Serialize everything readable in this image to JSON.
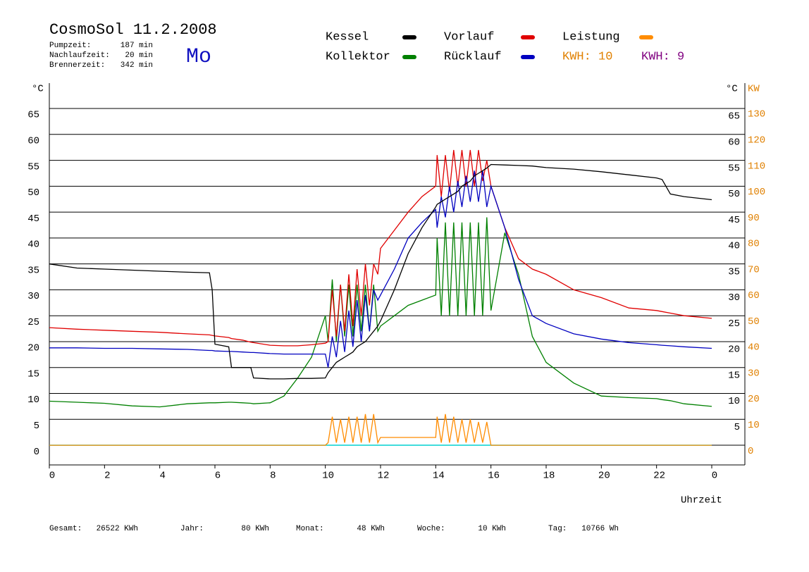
{
  "chart_data": {
    "type": "line",
    "title": "CosmoSol 11.2.2008",
    "weekday": "Mo",
    "stats": [
      {
        "label": "Pumpzeit:",
        "value": "187 min"
      },
      {
        "label": "Nachlaufzeit:",
        "value": "20 min"
      },
      {
        "label": "Brennerzeit:",
        "value": "342 min"
      }
    ],
    "kwh_labels": [
      {
        "text": "KWH: 10",
        "color": "#e08000"
      },
      {
        "text": "KWH: 9",
        "color": "#800080"
      }
    ],
    "ylabel": "°C",
    "y2label_left": "°C",
    "y2label": "KW",
    "xlabel": "Uhrzeit",
    "footer": [
      {
        "label": "Gesamt:",
        "value": "26522 KWh"
      },
      {
        "label": "Jahr:",
        "value": "80 KWh"
      },
      {
        "label": "Monat:",
        "value": "48 KWh"
      },
      {
        "label": "Woche:",
        "value": "10 KWh"
      },
      {
        "label": "Tag:",
        "value": "10766 Wh"
      }
    ],
    "xlim": [
      0,
      25.2
    ],
    "xticks": [
      0,
      2,
      4,
      6,
      8,
      10,
      12,
      14,
      16,
      18,
      20,
      22,
      {
        "value": 24,
        "label": "0"
      }
    ],
    "ylim": [
      -3.8,
      69.9
    ],
    "yticks": [
      0,
      5,
      10,
      15,
      20,
      25,
      30,
      35,
      40,
      45,
      50,
      55,
      60,
      65
    ],
    "yticks_right": [
      5,
      10,
      15,
      20,
      25,
      30,
      35,
      40,
      45,
      50,
      55,
      60,
      65
    ],
    "y2lim": [
      -7.6,
      139.8
    ],
    "y2ticks": [
      0,
      10,
      20,
      30,
      40,
      50,
      60,
      70,
      80,
      90,
      100,
      110,
      120,
      130
    ],
    "grid": true,
    "x": [
      0,
      1,
      2,
      3,
      4,
      5,
      5.8,
      5.9,
      6,
      6.5,
      6.6,
      7,
      7.3,
      7.4,
      8,
      8.5,
      9,
      9.5,
      10,
      10.1,
      10.25,
      10.4,
      10.55,
      10.7,
      10.85,
      11,
      11.15,
      11.3,
      11.45,
      11.6,
      11.75,
      11.9,
      12,
      12.5,
      13,
      13.5,
      14,
      14.05,
      14.2,
      14.35,
      14.5,
      14.65,
      14.8,
      14.95,
      15.1,
      15.25,
      15.4,
      15.55,
      15.7,
      15.85,
      16,
      16.5,
      17,
      17.5,
      18,
      19,
      20,
      21,
      22,
      22.2,
      22.5,
      23,
      24
    ],
    "series": [
      {
        "name": "Kessel",
        "color": "#000000",
        "values": [
          35,
          34.2,
          34,
          33.8,
          33.6,
          33.4,
          33.3,
          30,
          19.5,
          19,
          15,
          15,
          15,
          13,
          12.8,
          12.8,
          12.9,
          12.9,
          13,
          14,
          15,
          16,
          16.5,
          17,
          17.5,
          18,
          19,
          19.5,
          20,
          21,
          22,
          23,
          24,
          30,
          37,
          42,
          46,
          46.5,
          47,
          47.5,
          48,
          48.5,
          49,
          50,
          50.5,
          51,
          52,
          52.5,
          53,
          53.5,
          54.2,
          54.1,
          54,
          53.9,
          53.6,
          53.3,
          52.8,
          52.2,
          51.6,
          51.3,
          48.5,
          48,
          47.4
        ]
      },
      {
        "name": "Kollektor",
        "color": "#008000",
        "values": [
          8.5,
          8.3,
          8.1,
          7.6,
          7.4,
          8,
          8.2,
          8.2,
          8.2,
          8.3,
          8.3,
          8.2,
          8.1,
          8,
          8.2,
          9.5,
          13,
          17,
          25,
          20,
          32,
          20,
          31,
          21,
          31,
          21,
          31,
          22,
          31,
          22,
          31,
          22,
          23,
          25,
          27,
          28,
          29,
          40,
          25,
          43,
          25,
          43,
          25,
          43,
          25,
          43,
          25,
          43,
          25,
          44,
          26,
          41,
          33,
          21,
          16,
          12,
          9.5,
          9.2,
          9,
          8.8,
          8.6,
          8,
          7.5
        ]
      },
      {
        "name": "Vorlauf",
        "color": "#e00000",
        "values": [
          22.7,
          22.4,
          22.2,
          22,
          21.8,
          21.5,
          21.3,
          21.2,
          21.1,
          20.8,
          20.6,
          20.3,
          19.9,
          19.8,
          19.3,
          19.2,
          19.2,
          19.4,
          19.7,
          20,
          30,
          21,
          31,
          22,
          33,
          23,
          34,
          25,
          35,
          27,
          35,
          33,
          38,
          41.5,
          45,
          48,
          50,
          56,
          48,
          56,
          49,
          57,
          50,
          57,
          50,
          57,
          50,
          57,
          51,
          55,
          50,
          42,
          36,
          34,
          33,
          30,
          28.5,
          26.5,
          26,
          25.8,
          25.5,
          25,
          24.5
        ]
      },
      {
        "name": "Rücklauf",
        "color": "#0000c0",
        "values": [
          18.8,
          18.8,
          18.7,
          18.7,
          18.6,
          18.5,
          18.3,
          18.3,
          18.2,
          18.1,
          18.1,
          18,
          17.9,
          17.9,
          17.7,
          17.6,
          17.6,
          17.6,
          17.6,
          15,
          21,
          17,
          24,
          18,
          26,
          19,
          28,
          20,
          29,
          22,
          30,
          28,
          29,
          34,
          40,
          43,
          45.5,
          42,
          48,
          44,
          50,
          45,
          51,
          46,
          52,
          47,
          53,
          47,
          53,
          46,
          50,
          42,
          32,
          25,
          23.5,
          21.5,
          20.5,
          19.8,
          19.4,
          19.3,
          19.2,
          19,
          18.7
        ]
      },
      {
        "name": "Leistung",
        "color": "#ff8c00",
        "axis": "y2",
        "values": [
          0,
          0,
          0,
          0,
          0,
          0,
          0,
          0,
          0,
          0,
          0,
          0,
          0,
          0,
          0,
          0,
          0,
          0,
          0,
          1,
          11,
          1,
          10,
          1,
          11,
          1,
          11,
          1,
          12,
          1,
          12,
          1,
          3,
          3,
          3,
          3,
          3,
          11,
          1,
          12,
          1,
          11,
          1,
          10,
          1,
          10,
          1,
          9,
          1,
          9,
          0,
          0,
          0,
          0,
          0,
          0,
          0,
          0,
          0,
          0,
          0,
          0,
          0
        ]
      }
    ]
  }
}
